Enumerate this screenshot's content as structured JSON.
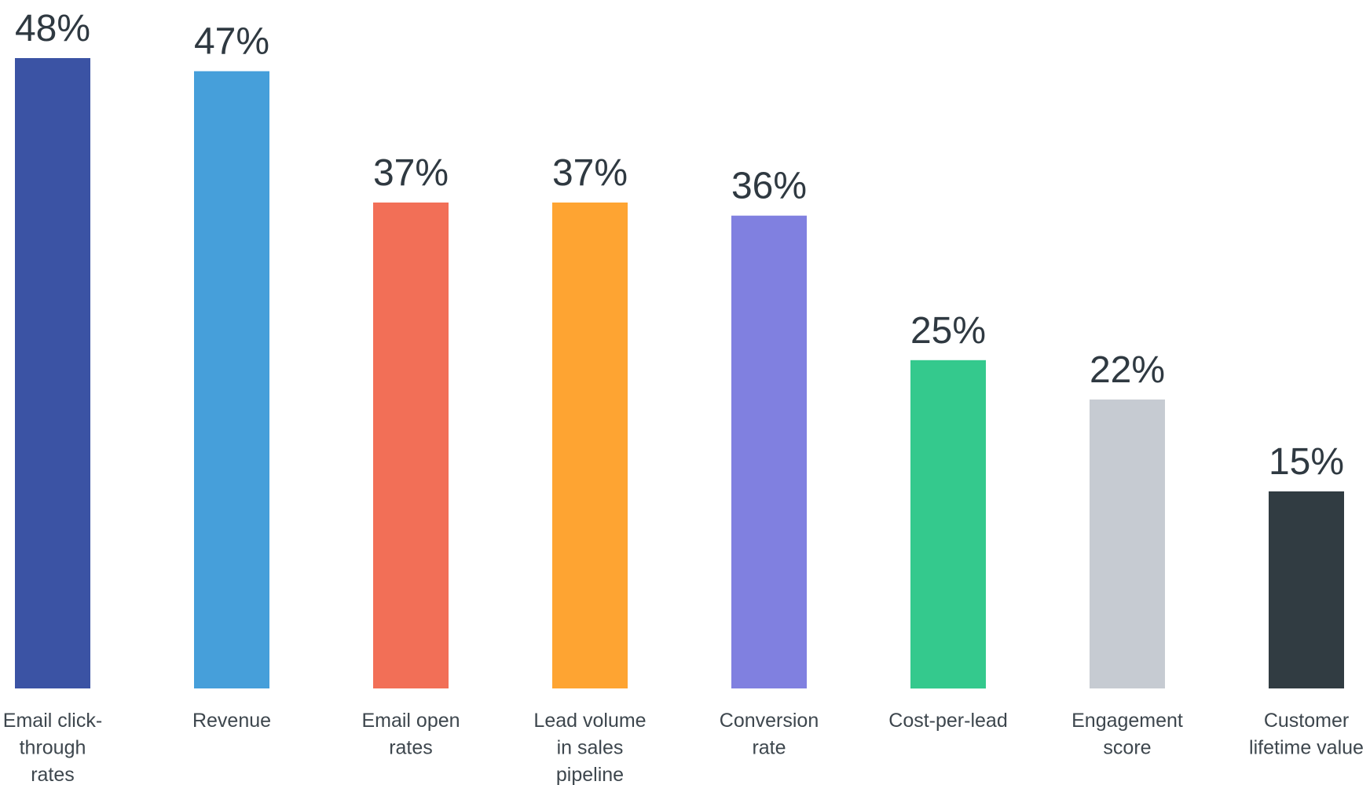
{
  "chart_data": {
    "type": "bar",
    "categories": [
      [
        "Email click-",
        "through",
        "rates"
      ],
      [
        "Revenue"
      ],
      [
        "Email open",
        "rates"
      ],
      [
        "Lead volume",
        "in sales",
        "pipeline"
      ],
      [
        "Conversion",
        "rate"
      ],
      [
        "Cost-per-lead"
      ],
      [
        "Engagement",
        "score"
      ],
      [
        "Customer",
        "lifetime value"
      ]
    ],
    "values": [
      48,
      47,
      37,
      37,
      36,
      25,
      22,
      15
    ],
    "value_labels": [
      "48%",
      "47%",
      "37%",
      "37%",
      "36%",
      "25%",
      "22%",
      "15%"
    ],
    "colors": [
      "#3b53a4",
      "#469fda",
      "#f26f57",
      "#fea432",
      "#8080e0",
      "#34c98d",
      "#c6cbd2",
      "#313c42"
    ],
    "ylim": [
      0,
      48
    ],
    "grid": false,
    "legend": "none"
  }
}
